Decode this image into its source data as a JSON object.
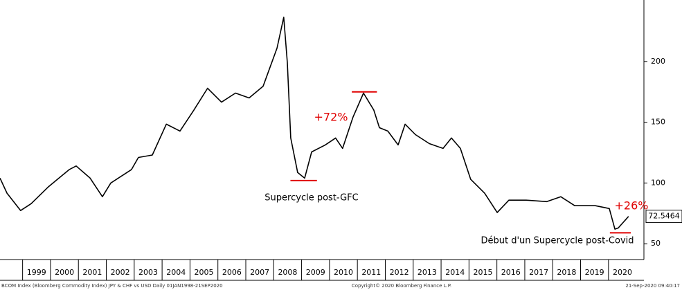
{
  "chart_data": {
    "type": "line",
    "x": [
      1998.19,
      1998.44,
      1998.93,
      1999.31,
      1999.93,
      2000.67,
      2000.92,
      2001.42,
      2001.86,
      2002.16,
      2002.9,
      2003.15,
      2003.65,
      2004.15,
      2004.64,
      2005.14,
      2005.63,
      2006.13,
      2006.63,
      2007.12,
      2007.62,
      2008.12,
      2008.36,
      2008.49,
      2008.61,
      2008.86,
      2009.11,
      2009.36,
      2009.85,
      2010.22,
      2010.47,
      2010.84,
      2011.22,
      2011.59,
      2011.79,
      2012.09,
      2012.46,
      2012.71,
      2013.08,
      2013.58,
      2014.07,
      2014.37,
      2014.69,
      2015.06,
      2015.56,
      2016.01,
      2016.43,
      2017.05,
      2017.79,
      2018.29,
      2018.79,
      2019.53,
      2020.03,
      2020.23,
      2020.35,
      2020.72
    ],
    "series": [
      {
        "name": "BCOM Index JPY & CHF vs USD",
        "color": "#000000",
        "values": [
          104,
          91.6,
          77.3,
          83,
          97,
          111,
          114,
          104,
          88.7,
          100,
          111,
          121,
          123,
          148.4,
          142.7,
          160,
          178,
          166.5,
          174,
          170,
          179.6,
          211,
          236.4,
          199,
          137,
          108.6,
          104,
          125.6,
          131.3,
          137,
          128.5,
          154,
          174,
          160,
          145.5,
          142.7,
          131.3,
          148.4,
          139.8,
          132.4,
          128.5,
          137,
          128.5,
          103,
          91.6,
          75.7,
          85.9,
          85.9,
          84.7,
          88.7,
          81.3,
          81.3,
          79,
          62,
          63,
          72.5
        ]
      }
    ],
    "last_value": 72.5464,
    "xlim": [
      1998.19,
      2021.27
    ],
    "ylim": [
      37,
      250.6
    ],
    "yticks": [
      50,
      100,
      150,
      200
    ],
    "xticks": [
      {
        "value": 1999.5,
        "label": "1999"
      },
      {
        "value": 2000.5,
        "label": "2000"
      },
      {
        "value": 2001.5,
        "label": "2001"
      },
      {
        "value": 2002.5,
        "label": "2002"
      },
      {
        "value": 2003.5,
        "label": "2003"
      },
      {
        "value": 2004.5,
        "label": "2004"
      },
      {
        "value": 2005.5,
        "label": "2005"
      },
      {
        "value": 2006.5,
        "label": "2006"
      },
      {
        "value": 2007.5,
        "label": "2007"
      },
      {
        "value": 2008.5,
        "label": "2008"
      },
      {
        "value": 2009.5,
        "label": "2009"
      },
      {
        "value": 2010.5,
        "label": "2010"
      },
      {
        "value": 2011.5,
        "label": "2011"
      },
      {
        "value": 2012.5,
        "label": "2012"
      },
      {
        "value": 2013.5,
        "label": "2013"
      },
      {
        "value": 2014.5,
        "label": "2014"
      },
      {
        "value": 2015.5,
        "label": "2015"
      },
      {
        "value": 2016.5,
        "label": "2016"
      },
      {
        "value": 2017.5,
        "label": "2017"
      },
      {
        "value": 2018.5,
        "label": "2018"
      },
      {
        "value": 2019.5,
        "label": "2019"
      },
      {
        "value": 2020.5,
        "label": "2020"
      }
    ],
    "markers": [
      {
        "level": 102,
        "x": [
          2008.6,
          2009.55
        ],
        "color": "#e00000"
      },
      {
        "level": 175,
        "x": [
          2010.8,
          2011.7
        ],
        "color": "#e00000"
      },
      {
        "level": 59,
        "x": [
          2020.05,
          2020.8
        ],
        "color": "#e00000"
      }
    ],
    "annotations": [
      {
        "text": "+72%",
        "color": "#e00000"
      },
      {
        "text": "Supercycle post-GFC",
        "color": "#000000"
      },
      {
        "text": "+26%",
        "color": "#e00000"
      },
      {
        "text": "Début d'un Supercycle post-Covid",
        "color": "#000000"
      }
    ],
    "footer": {
      "left": "BCOM Index (Bloomberg Commodity Index) JPY & CHF vs USD  Daily 01JAN1998-21SEP2020",
      "center": "Copyright© 2020 Bloomberg Finance L.P.",
      "right": "21-Sep-2020 09:40:17"
    }
  }
}
